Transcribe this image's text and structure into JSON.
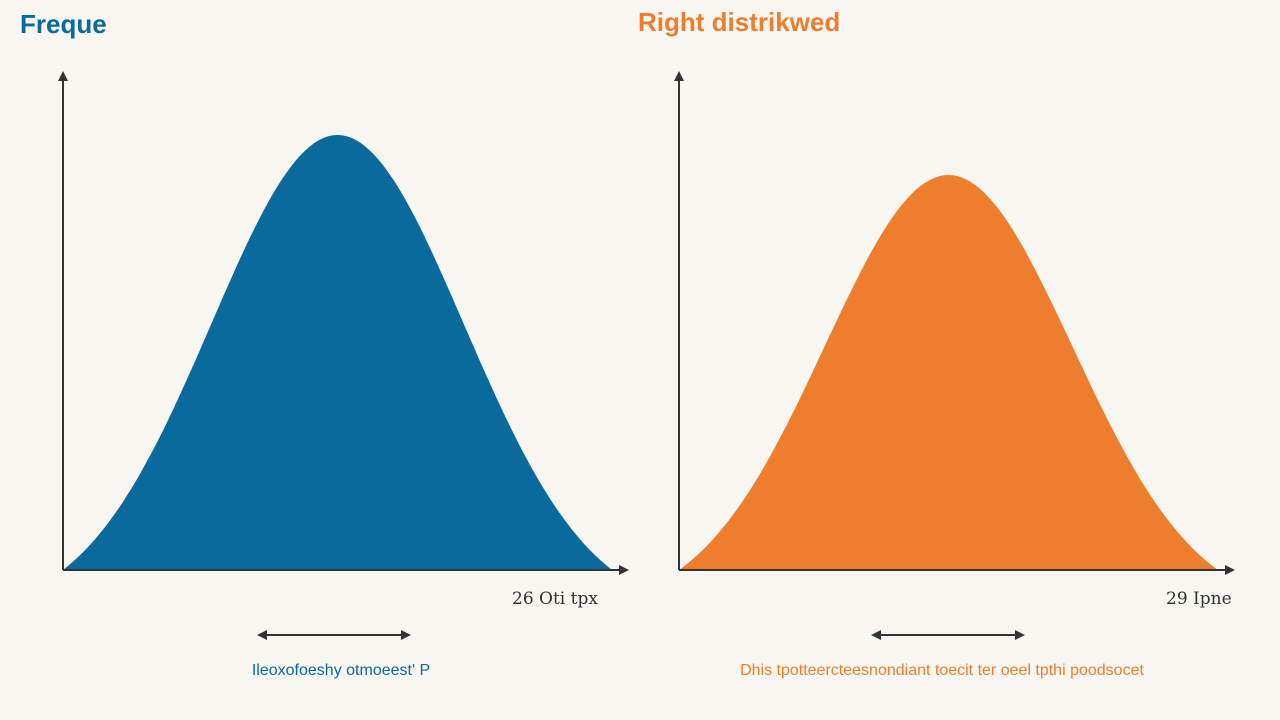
{
  "colors": {
    "background": "#f7f6f1",
    "axis": "#333333"
  },
  "chart_data": [
    {
      "type": "area",
      "title": "Freque",
      "color": "#0b6a9c",
      "x_tick_label": "26 Oti tpx",
      "caption": "Ileoxofoeshy otmoeest' P",
      "peak_height_fraction": 0.87,
      "peak_position_fraction": 0.5,
      "grid": false,
      "legend": "none"
    },
    {
      "type": "area",
      "title": "Right distrikwed",
      "color": "#ee7d2d",
      "x_tick_label": "29 Ipne",
      "caption": "Dhis tpotteercteesnondiant toecit ter oeel tpthi poodsocet",
      "peak_height_fraction": 0.79,
      "peak_position_fraction": 0.5,
      "grid": false,
      "legend": "none"
    }
  ]
}
